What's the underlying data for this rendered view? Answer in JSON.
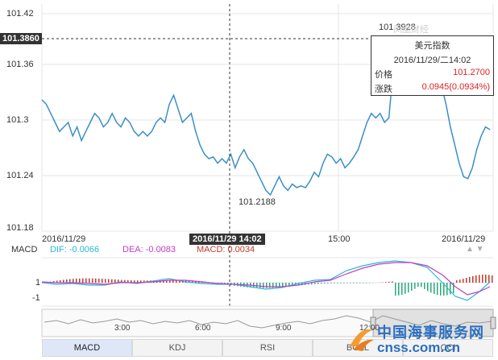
{
  "price_axis": {
    "current_price_tag": "101.3860",
    "labels": [
      "101.42",
      "101.36",
      "101.3",
      "101.24",
      "101.18"
    ]
  },
  "time_axis": {
    "labels": [
      "2016/11/29",
      "15:00",
      "2016/11/29"
    ],
    "crosshair_time": "2016/11/29 14:02"
  },
  "annotations": {
    "max_label": "101.3928",
    "min_label": "101.2188",
    "watermark_faint": "凤凰财经"
  },
  "tooltip": {
    "title": "美元指数",
    "datetime": "2016/11/29/二14:02",
    "price_label": "价格",
    "price_value": "101.2700",
    "change_label": "涨跌",
    "change_value": "0.0945(0.0934%)"
  },
  "macd": {
    "title": "MACD",
    "dif": "DIF: -0.0066",
    "dea": "DEA: -0.0083",
    "macd": "MACD: 0.0034",
    "axis_top": "1",
    "axis_bottom": "-1",
    "dif_color": "#29b8d8",
    "dea_color": "#c43cc4",
    "macd_color": "#c0392b"
  },
  "navigator": {
    "labels": [
      "3:00",
      "6:00",
      "9:00",
      "12:00"
    ]
  },
  "tabs": [
    "MACD",
    "KDJ",
    "RSI",
    "BOLL",
    "CCI"
  ],
  "watermark": {
    "line1": "中国海事服务网",
    "line2": "cnss.com.cn"
  },
  "chart_data": {
    "type": "line",
    "title": "美元指数",
    "ylim": [
      101.18,
      101.42
    ],
    "x_start": "2016/11/29",
    "series": [
      {
        "values": [
          101.325,
          101.32,
          101.31,
          101.3,
          101.29,
          101.295,
          101.3,
          101.285,
          101.295,
          101.28,
          101.29,
          101.3,
          101.31,
          101.305,
          101.295,
          101.3,
          101.31,
          101.3,
          101.295,
          101.305,
          101.3,
          101.29,
          101.285,
          101.29,
          101.285,
          101.29,
          101.3,
          101.305,
          101.3,
          101.32,
          101.33,
          101.315,
          101.3,
          101.305,
          101.31,
          101.29,
          101.275,
          101.265,
          101.26,
          101.262,
          101.255,
          101.26,
          101.255,
          101.265,
          101.25,
          101.262,
          101.27,
          101.26,
          101.255,
          101.245,
          101.235,
          101.225,
          101.22,
          101.23,
          101.24,
          101.23,
          101.225,
          101.232,
          101.228,
          101.23,
          101.228,
          101.235,
          101.245,
          101.24,
          101.255,
          101.265,
          101.262,
          101.255,
          101.26,
          101.25,
          101.255,
          101.262,
          101.27,
          101.285,
          101.3,
          101.31,
          101.305,
          101.31,
          101.3,
          101.305,
          101.36,
          101.39,
          101.392,
          101.388,
          101.385,
          101.37,
          101.375,
          101.36,
          101.38,
          101.36,
          101.35,
          101.34,
          101.32,
          101.295,
          101.275,
          101.255,
          101.24,
          101.238,
          101.25,
          101.27,
          101.285,
          101.295,
          101.292
        ]
      }
    ]
  }
}
